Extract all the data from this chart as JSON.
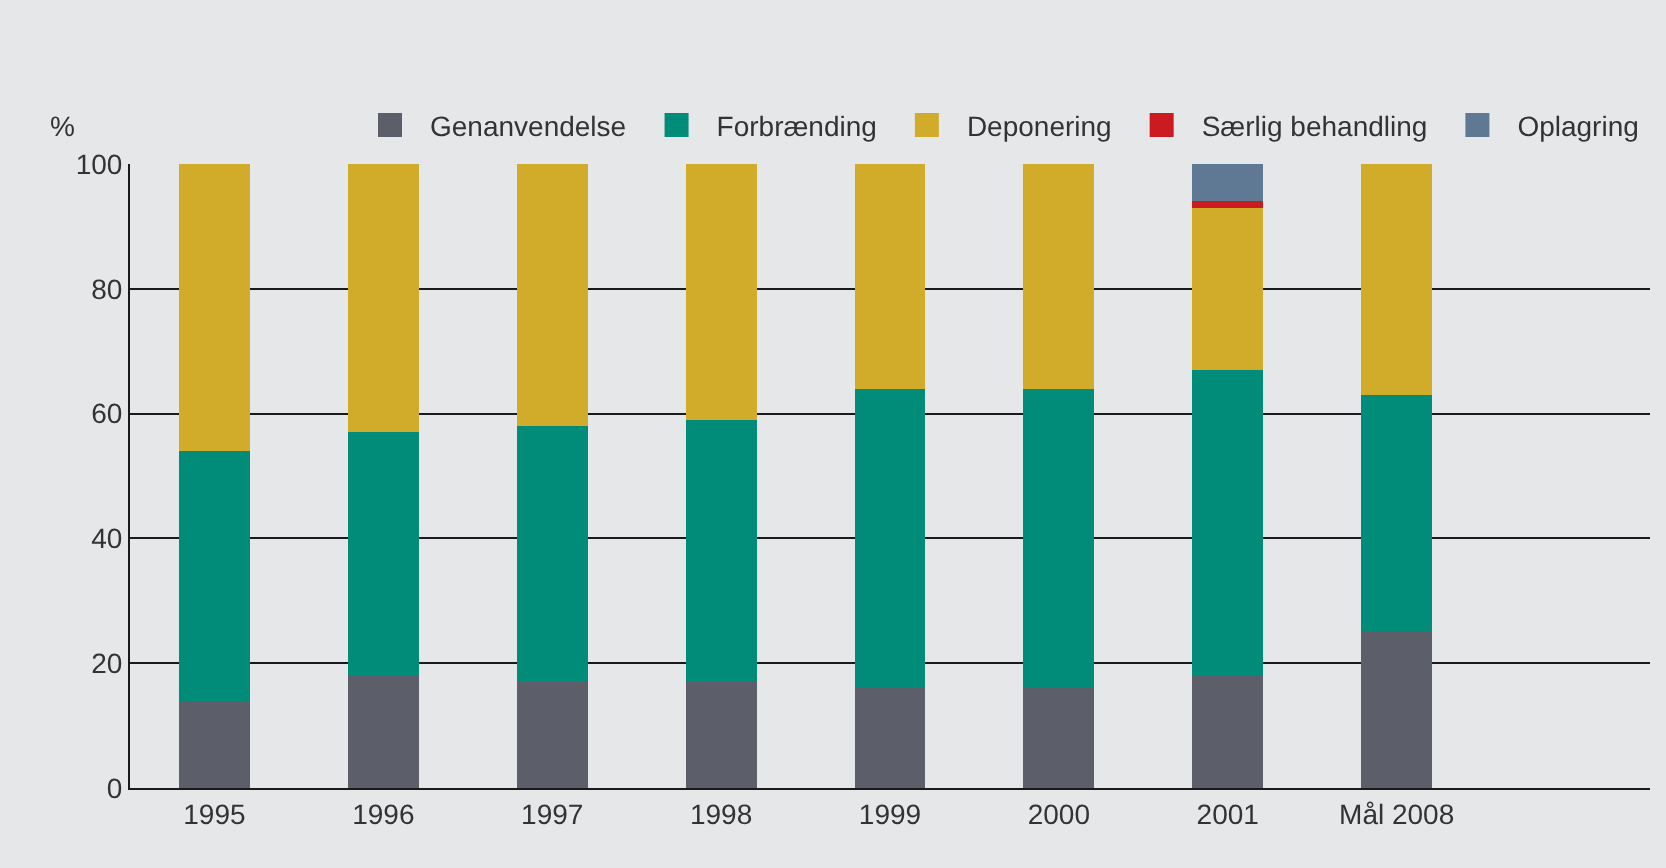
{
  "chart_data": {
    "type": "bar",
    "stacked": true,
    "ylabel": "%",
    "categories": [
      "1995",
      "1996",
      "1997",
      "1998",
      "1999",
      "2000",
      "2001",
      "Mål 2008"
    ],
    "series": [
      {
        "name": "Genanvendelse",
        "color": "#5c5f6a",
        "values": [
          14,
          18,
          17,
          17,
          16,
          16,
          18,
          25
        ]
      },
      {
        "name": "Forbrænding",
        "color": "#008c78",
        "values": [
          40,
          39,
          41,
          42,
          48,
          48,
          49,
          38
        ]
      },
      {
        "name": "Deponering",
        "color": "#d1ac2a",
        "values": [
          46,
          43,
          42,
          41,
          36,
          36,
          26,
          37
        ]
      },
      {
        "name": "Særlig behandling",
        "color": "#cc1a21",
        "values": [
          null,
          null,
          null,
          null,
          null,
          null,
          1,
          null
        ]
      },
      {
        "name": "Oplagring",
        "color": "#5f7893",
        "values": [
          null,
          null,
          null,
          null,
          null,
          null,
          6,
          null
        ]
      }
    ],
    "ylim": [
      0,
      100
    ],
    "yticks": [
      0,
      20,
      40,
      60,
      80,
      100
    ],
    "grid": "y",
    "legend": "top right"
  }
}
